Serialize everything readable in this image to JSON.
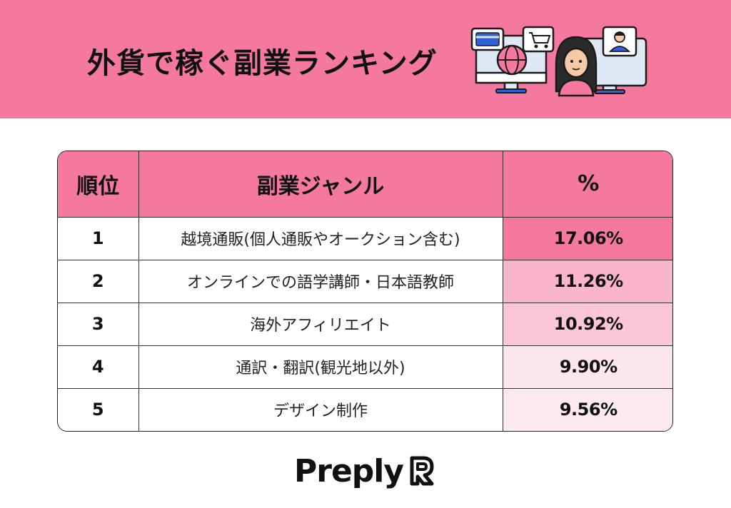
{
  "header": {
    "title": "外貨で稼ぐ副業ランキング",
    "background": "#f5799f"
  },
  "table": {
    "columns": [
      "順位",
      "副業ジャンル",
      "%"
    ],
    "rows": [
      {
        "rank": "1",
        "genre": "越境通販(個人通販やオークション含む)",
        "percent": "17.06%",
        "shade": "#f5799f"
      },
      {
        "rank": "2",
        "genre": "オンラインでの語学講師・日本語教師",
        "percent": "11.26%",
        "shade": "#f9b6ca"
      },
      {
        "rank": "3",
        "genre": "海外アフィリエイト",
        "percent": "10.92%",
        "shade": "#fbc7d6"
      },
      {
        "rank": "4",
        "genre": "通訳・翻訳(観光地以外)",
        "percent": "9.90%",
        "shade": "#fde6ed"
      },
      {
        "rank": "5",
        "genre": "デザイン制作",
        "percent": "9.56%",
        "shade": "#fdeaf0"
      }
    ]
  },
  "footer": {
    "logo_text": "Preply"
  },
  "icons": {
    "illustration": "online-shopping-tutor-illustration",
    "logo": "preply-logo-icon"
  }
}
